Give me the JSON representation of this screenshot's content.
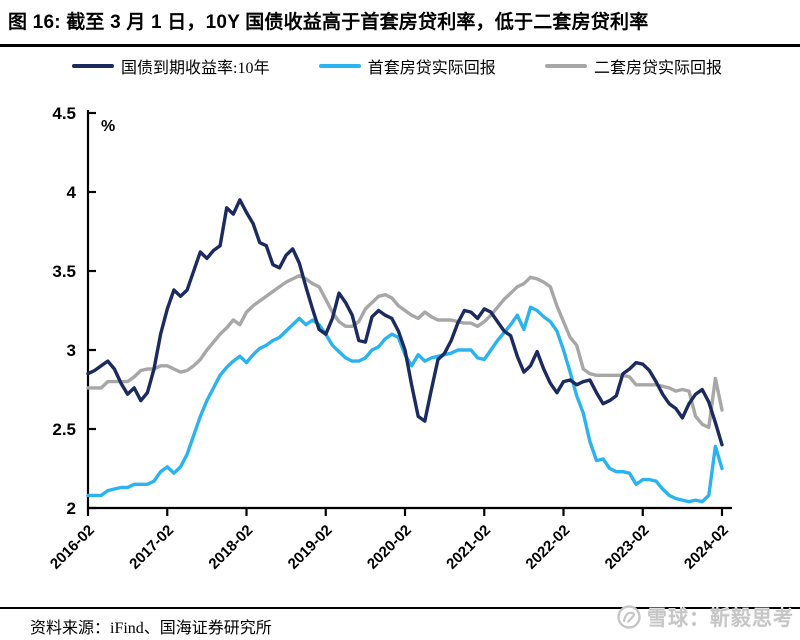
{
  "header": {
    "title": "图 16:  截至 3 月 1 日，10Y 国债收益高于首套房贷利率，低于二套房贷利率"
  },
  "footer": {
    "source": "资料来源：iFind、国海证券研究所"
  },
  "watermark": {
    "logo": "xueqiu-snowball-logo",
    "text": "雪球：靳毅思考"
  },
  "colors": {
    "treasury": "#1b2a5f",
    "first_home": "#2bb3ef",
    "second_home": "#a7a7a7",
    "axis": "#000000"
  },
  "chart_data": {
    "type": "line",
    "title": "截至 3 月 1 日，10Y 国债收益高于首套房贷利率，低于二套房贷利率",
    "ylabel": "%",
    "ylim": [
      2,
      4.5
    ],
    "y_tick_labels": [
      "4.5",
      "4",
      "3.5",
      "3",
      "2.5",
      "2"
    ],
    "y_ticks": [
      4.5,
      4,
      3.5,
      3,
      2.5,
      2
    ],
    "x_tick_labels": [
      "2016-02",
      "2017-02",
      "2018-02",
      "2019-02",
      "2020-02",
      "2021-02",
      "2022-02",
      "2023-02",
      "2024-02"
    ],
    "x_start": "2016-02",
    "x_end": "2024-02",
    "x_freq": "monthly",
    "grid": false,
    "legend_position": "top",
    "series": [
      {
        "name": "国债到期收益率:10年",
        "color": "#1b2a5f",
        "values": [
          2.85,
          2.87,
          2.9,
          2.93,
          2.88,
          2.79,
          2.72,
          2.76,
          2.68,
          2.73,
          2.88,
          3.1,
          3.26,
          3.38,
          3.34,
          3.38,
          3.5,
          3.62,
          3.58,
          3.63,
          3.66,
          3.9,
          3.86,
          3.95,
          3.87,
          3.8,
          3.68,
          3.66,
          3.54,
          3.52,
          3.6,
          3.64,
          3.55,
          3.4,
          3.26,
          3.13,
          3.1,
          3.2,
          3.36,
          3.3,
          3.22,
          3.06,
          3.05,
          3.21,
          3.25,
          3.22,
          3.2,
          3.12,
          3.0,
          2.78,
          2.58,
          2.55,
          2.75,
          2.94,
          2.98,
          3.06,
          3.17,
          3.25,
          3.24,
          3.2,
          3.26,
          3.24,
          3.18,
          3.12,
          3.09,
          2.96,
          2.86,
          2.9,
          2.99,
          2.88,
          2.79,
          2.73,
          2.8,
          2.81,
          2.78,
          2.8,
          2.81,
          2.73,
          2.66,
          2.68,
          2.71,
          2.85,
          2.88,
          2.92,
          2.91,
          2.87,
          2.8,
          2.72,
          2.66,
          2.63,
          2.57,
          2.66,
          2.72,
          2.75,
          2.67,
          2.54,
          2.4
        ]
      },
      {
        "name": "首套房贷实际回报",
        "color": "#2bb3ef",
        "values": [
          2.08,
          2.08,
          2.08,
          2.11,
          2.12,
          2.13,
          2.13,
          2.15,
          2.15,
          2.15,
          2.17,
          2.23,
          2.26,
          2.22,
          2.26,
          2.34,
          2.46,
          2.58,
          2.68,
          2.76,
          2.84,
          2.89,
          2.93,
          2.96,
          2.92,
          2.97,
          3.01,
          3.03,
          3.06,
          3.08,
          3.12,
          3.16,
          3.2,
          3.16,
          3.19,
          3.16,
          3.1,
          3.03,
          2.99,
          2.95,
          2.93,
          2.93,
          2.95,
          3.0,
          3.02,
          3.07,
          3.1,
          3.08,
          2.97,
          2.9,
          2.97,
          2.93,
          2.95,
          2.96,
          2.97,
          2.98,
          3.0,
          3.0,
          3.0,
          2.95,
          2.94,
          3.0,
          3.06,
          3.11,
          3.16,
          3.22,
          3.13,
          3.27,
          3.25,
          3.21,
          3.18,
          3.12,
          3.0,
          2.86,
          2.71,
          2.6,
          2.42,
          2.3,
          2.31,
          2.25,
          2.23,
          2.23,
          2.22,
          2.15,
          2.18,
          2.18,
          2.17,
          2.12,
          2.08,
          2.06,
          2.05,
          2.04,
          2.05,
          2.04,
          2.08,
          2.39,
          2.25
        ]
      },
      {
        "name": "二套房贷实际回报",
        "color": "#a7a7a7",
        "values": [
          2.76,
          2.76,
          2.76,
          2.8,
          2.8,
          2.8,
          2.8,
          2.83,
          2.87,
          2.88,
          2.88,
          2.9,
          2.9,
          2.88,
          2.86,
          2.87,
          2.9,
          2.94,
          3.0,
          3.05,
          3.1,
          3.14,
          3.19,
          3.16,
          3.24,
          3.28,
          3.31,
          3.34,
          3.37,
          3.4,
          3.43,
          3.45,
          3.47,
          3.45,
          3.42,
          3.4,
          3.32,
          3.24,
          3.18,
          3.15,
          3.15,
          3.18,
          3.26,
          3.3,
          3.34,
          3.35,
          3.33,
          3.28,
          3.25,
          3.22,
          3.2,
          3.24,
          3.21,
          3.19,
          3.19,
          3.19,
          3.18,
          3.17,
          3.17,
          3.15,
          3.18,
          3.22,
          3.27,
          3.32,
          3.36,
          3.4,
          3.42,
          3.46,
          3.45,
          3.43,
          3.4,
          3.28,
          3.18,
          3.08,
          3.03,
          2.88,
          2.85,
          2.84,
          2.84,
          2.84,
          2.84,
          2.84,
          2.83,
          2.78,
          2.78,
          2.78,
          2.78,
          2.77,
          2.76,
          2.74,
          2.75,
          2.74,
          2.58,
          2.53,
          2.51,
          2.82,
          2.62
        ]
      }
    ]
  }
}
